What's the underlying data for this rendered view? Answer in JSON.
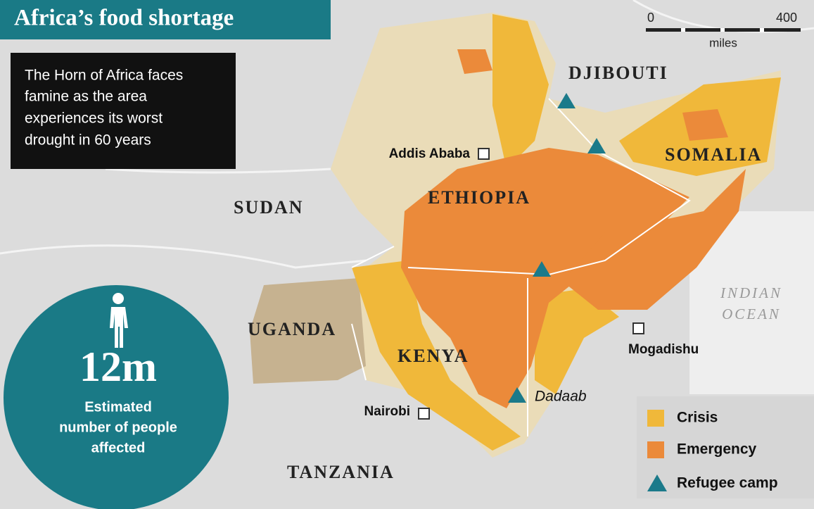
{
  "header": {
    "title": "Africa’s food shortage"
  },
  "intro": {
    "lines": [
      "The Horn of Africa faces",
      "famine as the area",
      "experiences its worst",
      "drought in 60 years"
    ]
  },
  "stat": {
    "value": "12m",
    "label_lines": [
      "Estimated",
      "number of people",
      "affected"
    ]
  },
  "scale": {
    "start": "0",
    "end": "400",
    "unit": "miles"
  },
  "countries": [
    "DJIBOUTI",
    "SOMALIA",
    "ETHIOPIA",
    "SUDAN",
    "UGANDA",
    "KENYA",
    "TANZANIA"
  ],
  "cities": [
    "Addis Ababa",
    "Nairobi",
    "Mogadishu"
  ],
  "camp": "Dadaab",
  "ocean": [
    "INDIAN",
    "OCEAN"
  ],
  "legend": [
    "Crisis",
    "Emergency",
    "Refugee camp"
  ]
}
